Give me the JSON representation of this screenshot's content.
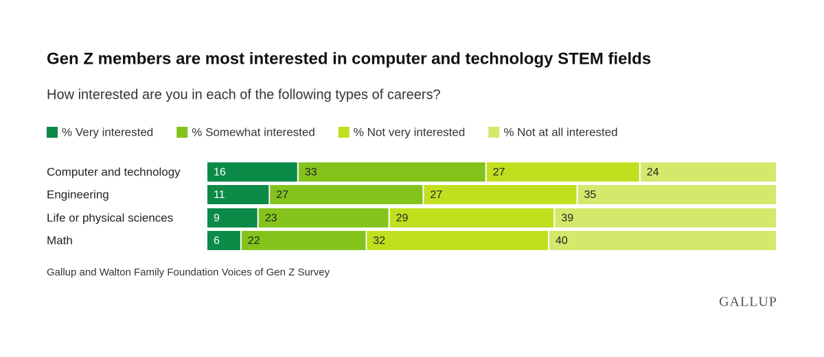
{
  "chart_data": {
    "type": "stacked-bar-horizontal",
    "title": "Gen Z members are most interested in computer and technology STEM fields",
    "subtitle": "How interested are you in each of the following types of careers?",
    "categories": [
      "Computer and technology",
      "Engineering",
      "Life or physical sciences",
      "Math"
    ],
    "series": [
      {
        "name": "% Very interested",
        "color": "#0b8a48",
        "values": [
          16,
          11,
          9,
          6
        ]
      },
      {
        "name": "% Somewhat interested",
        "color": "#84c31c",
        "values": [
          33,
          27,
          23,
          22
        ]
      },
      {
        "name": "% Not very interested",
        "color": "#c1df1f",
        "values": [
          27,
          27,
          29,
          32
        ]
      },
      {
        "name": "% Not at all interested",
        "color": "#d6e86c",
        "values": [
          24,
          35,
          39,
          40
        ]
      }
    ],
    "source": "Gallup and Walton Family Foundation Voices of Gen Z Survey",
    "logo": "GALLUP"
  }
}
